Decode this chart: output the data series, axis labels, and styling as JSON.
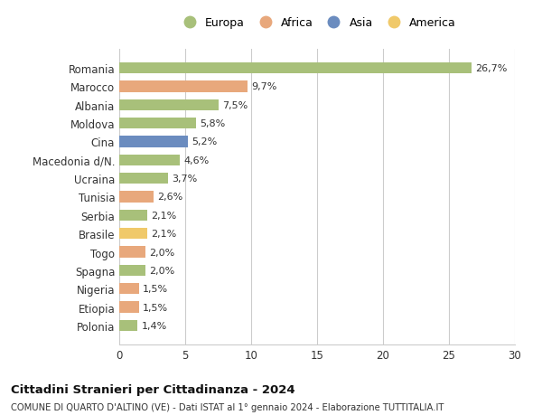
{
  "countries": [
    "Romania",
    "Marocco",
    "Albania",
    "Moldova",
    "Cina",
    "Macedonia d/N.",
    "Ucraina",
    "Tunisia",
    "Serbia",
    "Brasile",
    "Togo",
    "Spagna",
    "Nigeria",
    "Etiopia",
    "Polonia"
  ],
  "values": [
    26.7,
    9.7,
    7.5,
    5.8,
    5.2,
    4.6,
    3.7,
    2.6,
    2.1,
    2.1,
    2.0,
    2.0,
    1.5,
    1.5,
    1.4
  ],
  "labels": [
    "26,7%",
    "9,7%",
    "7,5%",
    "5,8%",
    "5,2%",
    "4,6%",
    "3,7%",
    "2,6%",
    "2,1%",
    "2,1%",
    "2,0%",
    "2,0%",
    "1,5%",
    "1,5%",
    "1,4%"
  ],
  "continents": [
    "Europa",
    "Africa",
    "Europa",
    "Europa",
    "Asia",
    "Europa",
    "Europa",
    "Africa",
    "Europa",
    "America",
    "Africa",
    "Europa",
    "Africa",
    "Africa",
    "Europa"
  ],
  "colors": {
    "Europa": "#a8c07a",
    "Africa": "#e8a87c",
    "Asia": "#6b8cbf",
    "America": "#f0c96a"
  },
  "legend_order": [
    "Europa",
    "Africa",
    "Asia",
    "America"
  ],
  "legend_colors": [
    "#a8c07a",
    "#e8a87c",
    "#6b8cbf",
    "#f0c96a"
  ],
  "title": "Cittadini Stranieri per Cittadinanza - 2024",
  "subtitle": "COMUNE DI QUARTO D'ALTINO (VE) - Dati ISTAT al 1° gennaio 2024 - Elaborazione TUTTITALIA.IT",
  "xlim": [
    0,
    30
  ],
  "xticks": [
    0,
    5,
    10,
    15,
    20,
    25,
    30
  ],
  "background_color": "#ffffff",
  "grid_color": "#cccccc",
  "bar_height": 0.6
}
